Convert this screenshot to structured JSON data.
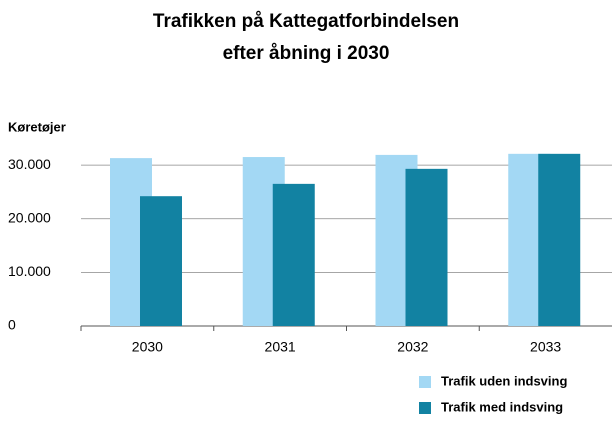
{
  "chart_data": {
    "type": "bar",
    "title": [
      "Trafikken på Kattegatforbindelsen",
      "efter åbning i 2030"
    ],
    "y_label": "Køretøjer",
    "categories": [
      "2030",
      "2031",
      "2032",
      "2033"
    ],
    "series": [
      {
        "name": "Trafik uden indsving",
        "color": "#a3d8f4",
        "values": [
          31300,
          31500,
          31900,
          32100
        ]
      },
      {
        "name": "Trafik med indsving",
        "color": "#1282a2",
        "values": [
          24200,
          26500,
          29300,
          32100
        ]
      }
    ],
    "ylim": [
      0,
      33000
    ],
    "yticks": [
      0,
      {
        "value": 10000,
        "label": "10.000"
      },
      {
        "value": 20000,
        "label": "20.000"
      },
      {
        "value": 30000,
        "label": "30.000"
      }
    ],
    "grid": true,
    "legend": "bottom-right"
  }
}
